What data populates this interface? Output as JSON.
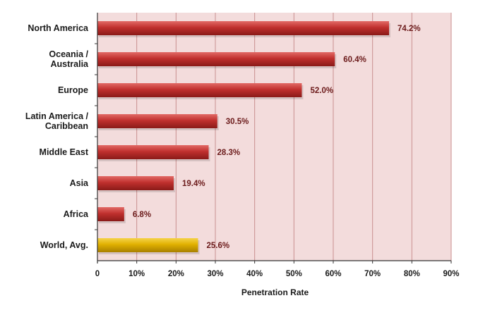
{
  "chart_data": {
    "type": "bar",
    "orientation": "horizontal",
    "categories": [
      [
        "North America"
      ],
      [
        "Oceania  /",
        "Australia"
      ],
      [
        "Europe"
      ],
      [
        "Latin America /",
        "Caribbean"
      ],
      [
        "Middle East"
      ],
      [
        "Asia"
      ],
      [
        "Africa"
      ],
      [
        "World, Avg."
      ]
    ],
    "values": [
      74.2,
      60.4,
      52.0,
      30.5,
      28.3,
      19.4,
      6.8,
      25.6
    ],
    "value_labels": [
      "74.2%",
      "60.4%",
      "52.0%",
      "30.5%",
      "28.3%",
      "19.4%",
      "6.8%",
      "25.6%"
    ],
    "highlight_index": 7,
    "xlabel": "Penetration Rate",
    "ylabel": "",
    "title": "",
    "xlim": [
      0,
      90
    ],
    "xticks": [
      0,
      10,
      20,
      30,
      40,
      50,
      60,
      70,
      80,
      90
    ],
    "xtick_labels": [
      "0",
      "10%",
      "20%",
      "30%",
      "40%",
      "50%",
      "60%",
      "70%",
      "80%",
      "90%"
    ],
    "grid": true,
    "legend": "none",
    "colors": {
      "plot_background": "#f3dcdc",
      "gridline": "#c98f8f",
      "bar": "#c0302e",
      "bar_dark": "#8a1a18",
      "bar_light": "#e26a66",
      "highlight_bar": "#e0b000",
      "highlight_dark": "#a97f00",
      "highlight_light": "#f5d34a"
    }
  }
}
